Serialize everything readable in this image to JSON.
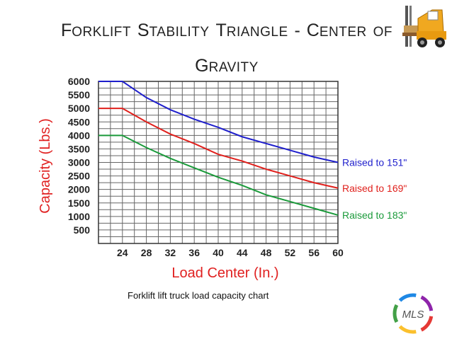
{
  "slide": {
    "title_line1": [
      {
        "cap": "F",
        "rest": "orklift"
      },
      {
        "cap": "S",
        "rest": "tability"
      },
      {
        "cap": "T",
        "rest": "riangle"
      },
      {
        "cap": "-",
        "rest": ""
      },
      {
        "cap": "C",
        "rest": "enter"
      },
      {
        "cap": "",
        "rest": "of"
      }
    ],
    "title_line2": [
      {
        "cap": "G",
        "rest": "ravity"
      }
    ],
    "caption": "Forklift lift truck load capacity chart"
  },
  "logo": {
    "brand_text": "MLS",
    "colors": [
      "#e53935",
      "#fbc02d",
      "#43a047",
      "#1e88e5",
      "#8e24aa"
    ]
  },
  "forklift_icon": {
    "icon": "forklift-icon"
  },
  "chart_data": {
    "type": "line",
    "xlabel": "Load Center (In.)",
    "ylabel": "Capacity (Lbs.)",
    "x": [
      24,
      28,
      32,
      36,
      40,
      44,
      48,
      52,
      56,
      60
    ],
    "x_ticks": [
      "24",
      "28",
      "32",
      "36",
      "40",
      "44",
      "48",
      "52",
      "56",
      "60"
    ],
    "y_ticks": [
      "500",
      "1000",
      "1500",
      "2000",
      "2500",
      "3000",
      "3500",
      "4000",
      "4500",
      "5000",
      "5500",
      "6000"
    ],
    "ylim": [
      0,
      6000
    ],
    "grid": true,
    "series": [
      {
        "name": "Raised to 151\"",
        "color": "#1f1fcc",
        "x": [
          20,
          24,
          28,
          32,
          36,
          40,
          44,
          48,
          52,
          56,
          60
        ],
        "values": [
          6000,
          6000,
          5400,
          4950,
          4600,
          4300,
          3950,
          3700,
          3450,
          3200,
          3000
        ]
      },
      {
        "name": "Raised to 169\"",
        "color": "#e0201c",
        "x": [
          20,
          24,
          28,
          32,
          36,
          40,
          44,
          48,
          52,
          56,
          60
        ],
        "values": [
          5000,
          5000,
          4500,
          4050,
          3700,
          3300,
          3050,
          2750,
          2500,
          2250,
          2050
        ]
      },
      {
        "name": "Raised to 183\"",
        "color": "#1a9a3a",
        "x": [
          20,
          24,
          28,
          32,
          36,
          40,
          44,
          48,
          52,
          56,
          60
        ],
        "values": [
          4000,
          4000,
          3550,
          3150,
          2800,
          2450,
          2150,
          1800,
          1550,
          1300,
          1050
        ]
      }
    ],
    "colors": {
      "axis_label": "#e02020",
      "tick": "#222222",
      "grid": "#666666"
    }
  }
}
